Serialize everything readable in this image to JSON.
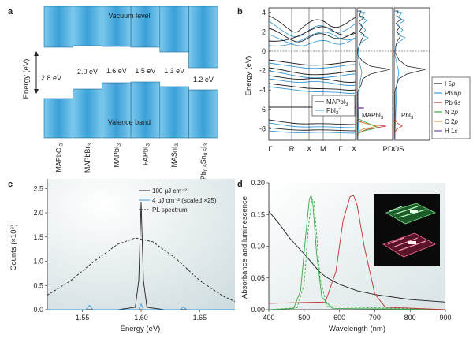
{
  "panels": {
    "a": {
      "label": "a",
      "ylabel": "Energy (eV)",
      "vacuum_label": "Vacuum level",
      "valence_label": "Valence band",
      "materials": [
        "MAPbCl",
        "MAPbBr",
        "MAPbI",
        "FAPbI",
        "MASnI",
        "MAPb"
      ],
      "material_subs": [
        "3",
        "3",
        "3",
        "3",
        "3",
        "0.5"
      ],
      "material_tail": [
        "",
        "",
        "",
        "",
        "",
        "Sn"
      ],
      "material_tail_sub": [
        "",
        "",
        "",
        "",
        "",
        "0.5"
      ],
      "material_end": [
        "",
        "",
        "",
        "",
        "",
        "I"
      ],
      "material_end_sub": [
        "",
        "",
        "",
        "",
        "",
        "3"
      ],
      "gaps": [
        "2.8 eV",
        "2.0 eV",
        "1.6 eV",
        "1.5 eV",
        "1.3 eV",
        "1.2 eV"
      ]
    },
    "b": {
      "label": "b",
      "ylabel": "Energy (eV)",
      "xticks": [
        "Γ",
        "R",
        "X",
        "M",
        "Γ",
        "X"
      ],
      "yticks": [
        "4",
        "2",
        "0",
        "-2",
        "-4",
        "-6",
        "-8"
      ],
      "xlabel_right": "PDOS",
      "legend1": [
        {
          "name": "MAPbI",
          "sub": "3",
          "sup": "",
          "color": "#231f20"
        },
        {
          "name": "PbI",
          "sub": "3",
          "sup": "−",
          "color": "#3a9ad9"
        }
      ],
      "mapbi3_label": "MAPbI",
      "mapbi3_sub": "3",
      "pbi3_label": "PbI",
      "pbi3_sub": "3",
      "pbi3_sup": "−",
      "legend2": [
        {
          "name": "I 5",
          "orb": "p",
          "color": "#231f20"
        },
        {
          "name": "Pb 6",
          "orb": "p",
          "color": "#3a9ad9"
        },
        {
          "name": "Pb 6",
          "orb": "s",
          "color": "#c0302c"
        },
        {
          "name": "N 2",
          "orb": "p",
          "color": "#3aa845"
        },
        {
          "name": "C 2",
          "orb": "p",
          "color": "#e58a1f"
        },
        {
          "name": "H 1",
          "orb": "s",
          "color": "#7a4a9e"
        }
      ]
    },
    "c": {
      "label": "c",
      "ylabel": "Counts (×10⁶)",
      "xlabel": "Energy (eV)",
      "xticks": [
        "1.55",
        "1.60",
        "1.65"
      ],
      "yticks": [
        "0.0",
        "0.5",
        "1.0",
        "1.5",
        "2.0",
        "2.5"
      ],
      "legend": [
        {
          "name": "100 μJ cm⁻²",
          "color": "#231f20",
          "dash": false
        },
        {
          "name": "4 μJ cm⁻² (scaled ×25)",
          "color": "#3a9ad9",
          "dash": false
        },
        {
          "name": "PL spectrum",
          "color": "#231f20",
          "dash": true
        }
      ]
    },
    "d": {
      "label": "d",
      "ylabel": "Absorbance and luminescence",
      "xlabel": "Wavelength (nm)",
      "xticks": [
        "400",
        "500",
        "600",
        "700",
        "800",
        "900"
      ],
      "yticks": [
        "0.00",
        "0.05",
        "0.10",
        "0.15",
        "0.20"
      ]
    }
  },
  "chart_data": [
    {
      "type": "line",
      "panel": "c",
      "xlabel": "Energy (eV)",
      "ylabel": "Counts (×10⁶)",
      "xlim": [
        1.52,
        1.68
      ],
      "ylim": [
        0,
        2.7
      ],
      "series": [
        {
          "name": "100 μJ cm⁻²",
          "x": [
            1.52,
            1.58,
            1.595,
            1.598,
            1.6,
            1.602,
            1.605,
            1.62,
            1.68
          ],
          "y": [
            0.0,
            0.0,
            0.05,
            0.6,
            2.22,
            0.6,
            0.05,
            0.0,
            0.0
          ]
        },
        {
          "name": "4 μJ cm⁻² (scaled ×25)",
          "x": [
            1.52,
            1.553,
            1.556,
            1.559,
            1.598,
            1.6,
            1.602,
            1.633,
            1.636,
            1.639,
            1.68
          ],
          "y": [
            0.0,
            0.0,
            0.09,
            0.0,
            0.0,
            0.12,
            0.0,
            0.0,
            0.06,
            0.0,
            0.0
          ]
        },
        {
          "name": "PL spectrum",
          "x": [
            1.52,
            1.54,
            1.56,
            1.58,
            1.595,
            1.61,
            1.63,
            1.65,
            1.67,
            1.68
          ],
          "y": [
            0.3,
            0.6,
            1.0,
            1.35,
            1.48,
            1.4,
            1.05,
            0.6,
            0.28,
            0.17
          ]
        }
      ]
    },
    {
      "type": "line",
      "panel": "d",
      "xlabel": "Wavelength (nm)",
      "ylabel": "Absorbance and luminescence",
      "xlim": [
        400,
        900
      ],
      "ylim": [
        0,
        0.2
      ],
      "series": [
        {
          "x": [
            400,
            430,
            460,
            480,
            500,
            520,
            540,
            560,
            600,
            650,
            700,
            800,
            900
          ],
          "y": [
            0.155,
            0.135,
            0.112,
            0.1,
            0.088,
            0.075,
            0.062,
            0.052,
            0.04,
            0.03,
            0.024,
            0.016,
            0.012
          ],
          "color": "#231f20"
        },
        {
          "x": [
            400,
            470,
            490,
            505,
            515,
            520,
            525,
            535,
            550,
            580,
            900
          ],
          "y": [
            0.0,
            0.002,
            0.03,
            0.12,
            0.175,
            0.18,
            0.165,
            0.09,
            0.02,
            0.002,
            0.0
          ],
          "color": "#3aa845"
        },
        {
          "x": [
            400,
            480,
            500,
            512,
            522,
            528,
            535,
            545,
            565,
            900
          ],
          "y": [
            0.0,
            0.003,
            0.04,
            0.13,
            0.175,
            0.17,
            0.12,
            0.05,
            0.005,
            0.0
          ],
          "color": "#3aa845",
          "dash": true
        },
        {
          "x": [
            400,
            560,
            590,
            610,
            630,
            640,
            650,
            670,
            700,
            730,
            900
          ],
          "y": [
            0.01,
            0.012,
            0.06,
            0.14,
            0.178,
            0.18,
            0.165,
            0.1,
            0.025,
            0.004,
            0.0
          ],
          "color": "#c0302c"
        }
      ]
    }
  ]
}
